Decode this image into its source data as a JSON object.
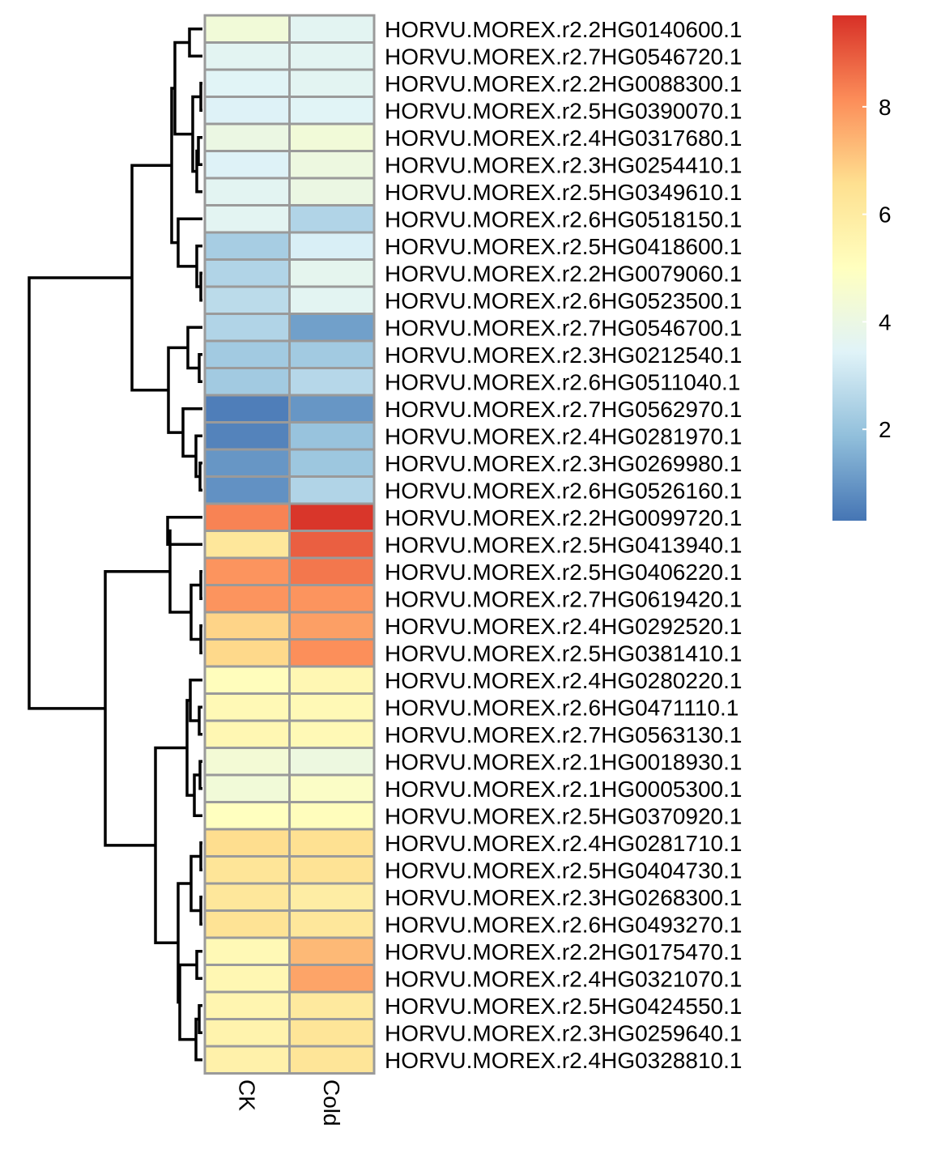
{
  "chart_data": {
    "type": "heatmap",
    "columns": [
      "CK",
      "Cold"
    ],
    "rows": [
      "HORVU.MOREX.r2.2HG0140600.1",
      "HORVU.MOREX.r2.7HG0546720.1",
      "HORVU.MOREX.r2.2HG0088300.1",
      "HORVU.MOREX.r2.5HG0390070.1",
      "HORVU.MOREX.r2.4HG0317680.1",
      "HORVU.MOREX.r2.3HG0254410.1",
      "HORVU.MOREX.r2.5HG0349610.1",
      "HORVU.MOREX.r2.6HG0518150.1",
      "HORVU.MOREX.r2.5HG0418600.1",
      "HORVU.MOREX.r2.2HG0079060.1",
      "HORVU.MOREX.r2.6HG0523500.1",
      "HORVU.MOREX.r2.7HG0546700.1",
      "HORVU.MOREX.r2.3HG0212540.1",
      "HORVU.MOREX.r2.6HG0511040.1",
      "HORVU.MOREX.r2.7HG0562970.1",
      "HORVU.MOREX.r2.4HG0281970.1",
      "HORVU.MOREX.r2.3HG0269980.1",
      "HORVU.MOREX.r2.6HG0526160.1",
      "HORVU.MOREX.r2.2HG0099720.1",
      "HORVU.MOREX.r2.5HG0413940.1",
      "HORVU.MOREX.r2.5HG0406220.1",
      "HORVU.MOREX.r2.7HG0619420.1",
      "HORVU.MOREX.r2.4HG0292520.1",
      "HORVU.MOREX.r2.5HG0381410.1",
      "HORVU.MOREX.r2.4HG0280220.1",
      "HORVU.MOREX.r2.6HG0471110.1",
      "HORVU.MOREX.r2.7HG0563130.1",
      "HORVU.MOREX.r2.1HG0018930.1",
      "HORVU.MOREX.r2.1HG0005300.1",
      "HORVU.MOREX.r2.5HG0370920.1",
      "HORVU.MOREX.r2.4HG0281710.1",
      "HORVU.MOREX.r2.5HG0404730.1",
      "HORVU.MOREX.r2.3HG0268300.1",
      "HORVU.MOREX.r2.6HG0493270.1",
      "HORVU.MOREX.r2.2HG0175470.1",
      "HORVU.MOREX.r2.4HG0321070.1",
      "HORVU.MOREX.r2.5HG0424550.1",
      "HORVU.MOREX.r2.3HG0259640.1",
      "HORVU.MOREX.r2.4HG0328810.1"
    ],
    "values": [
      [
        4.3,
        3.6
      ],
      [
        3.6,
        3.6
      ],
      [
        3.5,
        3.6
      ],
      [
        3.4,
        3.5
      ],
      [
        4.0,
        4.3
      ],
      [
        3.4,
        4.1
      ],
      [
        3.6,
        4.0
      ],
      [
        3.6,
        2.5
      ],
      [
        2.3,
        3.3
      ],
      [
        2.5,
        3.7
      ],
      [
        2.7,
        3.6
      ],
      [
        2.5,
        1.2
      ],
      [
        2.2,
        2.2
      ],
      [
        2.2,
        2.6
      ],
      [
        0.5,
        1.0
      ],
      [
        0.6,
        2.0
      ],
      [
        1.0,
        2.1
      ],
      [
        0.9,
        2.5
      ],
      [
        8.3,
        9.6
      ],
      [
        6.2,
        8.9
      ],
      [
        8.0,
        8.5
      ],
      [
        8.0,
        8.0
      ],
      [
        6.8,
        7.8
      ],
      [
        6.7,
        8.1
      ],
      [
        5.1,
        5.4
      ],
      [
        5.3,
        5.3
      ],
      [
        5.4,
        5.3
      ],
      [
        4.4,
        4.1
      ],
      [
        4.3,
        4.8
      ],
      [
        5.0,
        5.1
      ],
      [
        6.6,
        6.5
      ],
      [
        6.3,
        6.4
      ],
      [
        6.2,
        5.9
      ],
      [
        6.4,
        6.2
      ],
      [
        5.3,
        7.3
      ],
      [
        5.4,
        7.7
      ],
      [
        5.5,
        6.1
      ],
      [
        5.6,
        6.3
      ],
      [
        5.7,
        6.3
      ]
    ],
    "colorbar": {
      "min": 0.3,
      "max": 9.7,
      "ticks": [
        "2",
        "4",
        "6",
        "8"
      ],
      "colors": [
        "#4575B4",
        "#91BFDB",
        "#E0F3F8",
        "#FFFFBF",
        "#FEE090",
        "#FC8D59",
        "#D73027"
      ]
    },
    "cluster": "rows",
    "title": "",
    "xlabel": "",
    "ylabel": ""
  }
}
